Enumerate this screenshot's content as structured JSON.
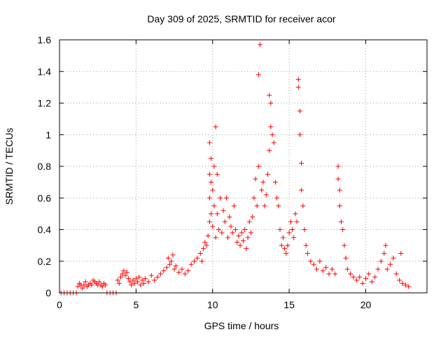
{
  "chart_data": {
    "type": "scatter",
    "title": "Day 309 of 2025, SRMTID for receiver acor",
    "xlabel": "GPS time / hours",
    "ylabel": "SRMTID / TECUs",
    "xlim": [
      0,
      24
    ],
    "ylim": [
      0,
      1.6
    ],
    "xticks": [
      0,
      5,
      10,
      15,
      20
    ],
    "xtick_labels": [
      "0",
      "5",
      "10",
      "15",
      "20"
    ],
    "yticks": [
      0,
      0.2,
      0.4,
      0.6,
      0.8,
      1.0,
      1.2,
      1.4,
      1.6
    ],
    "ytick_labels": [
      "0",
      "0.2",
      "0.4",
      "0.6",
      "0.8",
      "1",
      "1.2",
      "1.4",
      "1.6"
    ],
    "grid": true,
    "marker": "+",
    "series": [
      {
        "name": "SRMTID",
        "color": "#ff0000",
        "points": [
          [
            0.1,
            0
          ],
          [
            0.3,
            0
          ],
          [
            0.5,
            0
          ],
          [
            0.7,
            0
          ],
          [
            0.9,
            0
          ],
          [
            1.1,
            0
          ],
          [
            1.2,
            0.04
          ],
          [
            1.3,
            0.06
          ],
          [
            1.4,
            0.05
          ],
          [
            1.5,
            0.03
          ],
          [
            1.6,
            0.05
          ],
          [
            1.7,
            0.07
          ],
          [
            1.8,
            0.04
          ],
          [
            1.9,
            0.05
          ],
          [
            2.0,
            0.06
          ],
          [
            2.1,
            0.05
          ],
          [
            2.2,
            0.08
          ],
          [
            2.3,
            0.07
          ],
          [
            2.4,
            0.06
          ],
          [
            2.5,
            0.05
          ],
          [
            2.6,
            0.07
          ],
          [
            2.7,
            0.05
          ],
          [
            2.8,
            0.04
          ],
          [
            2.9,
            0.06
          ],
          [
            3.0,
            0.05
          ],
          [
            3.1,
            0
          ],
          [
            3.3,
            0
          ],
          [
            3.5,
            0
          ],
          [
            3.7,
            0
          ],
          [
            3.8,
            0.08
          ],
          [
            3.9,
            0.06
          ],
          [
            4.0,
            0.1
          ],
          [
            4.1,
            0.12
          ],
          [
            4.2,
            0.14
          ],
          [
            4.3,
            0.11
          ],
          [
            4.4,
            0.13
          ],
          [
            4.5,
            0.09
          ],
          [
            4.6,
            0.07
          ],
          [
            4.7,
            0.05
          ],
          [
            4.8,
            0.08
          ],
          [
            4.9,
            0.06
          ],
          [
            5.0,
            0.09
          ],
          [
            5.1,
            0.07
          ],
          [
            5.2,
            0.1
          ],
          [
            5.3,
            0.05
          ],
          [
            5.4,
            0.08
          ],
          [
            5.5,
            0.06
          ],
          [
            5.6,
            0.09
          ],
          [
            5.8,
            0.07
          ],
          [
            6.0,
            0.11
          ],
          [
            6.2,
            0.08
          ],
          [
            6.4,
            0.1
          ],
          [
            6.6,
            0.12
          ],
          [
            6.8,
            0.14
          ],
          [
            7.0,
            0.16
          ],
          [
            7.1,
            0.22
          ],
          [
            7.2,
            0.18
          ],
          [
            7.3,
            0.2
          ],
          [
            7.4,
            0.24
          ],
          [
            7.5,
            0.15
          ],
          [
            7.6,
            0.17
          ],
          [
            7.8,
            0.13
          ],
          [
            8.0,
            0.15
          ],
          [
            8.2,
            0.12
          ],
          [
            8.4,
            0.14
          ],
          [
            8.6,
            0.18
          ],
          [
            8.8,
            0.2
          ],
          [
            9.0,
            0.22
          ],
          [
            9.2,
            0.25
          ],
          [
            9.3,
            0.2
          ],
          [
            9.4,
            0.28
          ],
          [
            9.5,
            0.32
          ],
          [
            9.6,
            0.3
          ],
          [
            9.7,
            0.36
          ],
          [
            9.8,
            0.45
          ],
          [
            9.8,
            0.6
          ],
          [
            9.8,
            0.75
          ],
          [
            9.8,
            0.95
          ],
          [
            9.9,
            0.5
          ],
          [
            9.9,
            0.7
          ],
          [
            9.9,
            0.85
          ],
          [
            10.0,
            0.42
          ],
          [
            10.0,
            0.65
          ],
          [
            10.1,
            0.55
          ],
          [
            10.1,
            0.8
          ],
          [
            10.2,
            0.35
          ],
          [
            10.2,
            1.05
          ],
          [
            10.3,
            0.5
          ],
          [
            10.3,
            0.75
          ],
          [
            10.4,
            0.4
          ],
          [
            10.5,
            0.6
          ],
          [
            10.6,
            0.38
          ],
          [
            10.7,
            0.52
          ],
          [
            10.8,
            0.45
          ],
          [
            10.9,
            0.6
          ],
          [
            11.0,
            0.35
          ],
          [
            11.1,
            0.48
          ],
          [
            11.2,
            0.42
          ],
          [
            11.3,
            0.38
          ],
          [
            11.4,
            0.55
          ],
          [
            11.5,
            0.4
          ],
          [
            11.6,
            0.32
          ],
          [
            11.7,
            0.36
          ],
          [
            11.8,
            0.3
          ],
          [
            11.9,
            0.38
          ],
          [
            12.0,
            0.33
          ],
          [
            12.1,
            0.4
          ],
          [
            12.2,
            0.28
          ],
          [
            12.3,
            0.35
          ],
          [
            12.4,
            0.45
          ],
          [
            12.5,
            0.38
          ],
          [
            12.6,
            0.48
          ],
          [
            12.7,
            0.6
          ],
          [
            12.8,
            0.72
          ],
          [
            12.9,
            0.55
          ],
          [
            13.0,
            0.8
          ],
          [
            13.0,
            1.38
          ],
          [
            13.1,
            1.57
          ],
          [
            13.2,
            0.65
          ],
          [
            13.3,
            0.7
          ],
          [
            13.4,
            0.55
          ],
          [
            13.5,
            0.62
          ],
          [
            13.6,
            0.75
          ],
          [
            13.7,
            0.9
          ],
          [
            13.7,
            1.25
          ],
          [
            13.8,
            1.05
          ],
          [
            13.8,
            1.2
          ],
          [
            13.9,
            1.0
          ],
          [
            14.0,
            0.95
          ],
          [
            14.1,
            0.7
          ],
          [
            14.2,
            0.6
          ],
          [
            14.3,
            0.55
          ],
          [
            14.4,
            0.4
          ],
          [
            14.5,
            0.3
          ],
          [
            14.6,
            0.35
          ],
          [
            14.7,
            0.28
          ],
          [
            14.8,
            0.25
          ],
          [
            14.9,
            0.3
          ],
          [
            15.0,
            0.38
          ],
          [
            15.1,
            0.45
          ],
          [
            15.2,
            0.4
          ],
          [
            15.3,
            0.35
          ],
          [
            15.4,
            0.5
          ],
          [
            15.5,
            0.45
          ],
          [
            15.6,
            1.35
          ],
          [
            15.6,
            1.3
          ],
          [
            15.7,
            1.15
          ],
          [
            15.7,
            1.0
          ],
          [
            15.8,
            0.82
          ],
          [
            15.8,
            0.65
          ],
          [
            15.9,
            0.55
          ],
          [
            16.0,
            0.4
          ],
          [
            16.1,
            0.3
          ],
          [
            16.2,
            0.25
          ],
          [
            16.4,
            0.2
          ],
          [
            16.6,
            0.18
          ],
          [
            16.8,
            0.15
          ],
          [
            17.0,
            0.2
          ],
          [
            17.2,
            0.14
          ],
          [
            17.4,
            0.16
          ],
          [
            17.6,
            0.12
          ],
          [
            17.8,
            0.15
          ],
          [
            18.0,
            0.12
          ],
          [
            18.2,
            0.8
          ],
          [
            18.2,
            0.72
          ],
          [
            18.3,
            0.65
          ],
          [
            18.3,
            0.55
          ],
          [
            18.4,
            0.45
          ],
          [
            18.5,
            0.4
          ],
          [
            18.6,
            0.3
          ],
          [
            18.7,
            0.22
          ],
          [
            18.8,
            0.15
          ],
          [
            19.0,
            0.12
          ],
          [
            19.2,
            0.1
          ],
          [
            19.4,
            0.08
          ],
          [
            19.6,
            0.1
          ],
          [
            19.8,
            0.06
          ],
          [
            20.0,
            0.09
          ],
          [
            20.2,
            0.12
          ],
          [
            20.4,
            0.07
          ],
          [
            20.6,
            0.1
          ],
          [
            20.8,
            0.15
          ],
          [
            21.0,
            0.2
          ],
          [
            21.2,
            0.25
          ],
          [
            21.3,
            0.3
          ],
          [
            21.4,
            0.15
          ],
          [
            21.6,
            0.18
          ],
          [
            21.8,
            0.22
          ],
          [
            22.0,
            0.12
          ],
          [
            22.2,
            0.08
          ],
          [
            22.3,
            0.25
          ],
          [
            22.4,
            0.06
          ],
          [
            22.6,
            0.05
          ],
          [
            22.8,
            0.04
          ]
        ]
      }
    ]
  }
}
